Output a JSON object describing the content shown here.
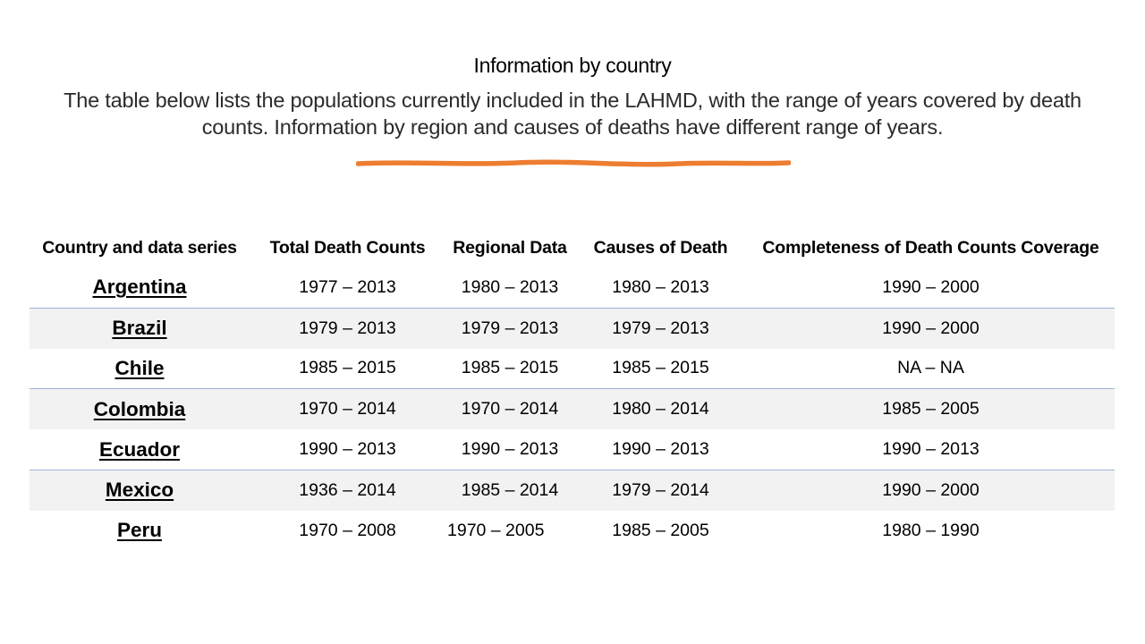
{
  "page": {
    "title": "Information by country",
    "subtitle": "The table below lists the populations currently included in the LAHMD, with the range of years covered by death counts. Information by region and causes of deaths have different range of years."
  },
  "colors": {
    "accent_stroke": "#ed7d31",
    "row_shade": "#f2f2f2",
    "row_rule": "#9bb3d6"
  },
  "table": {
    "headers": [
      "Country and data series",
      "Total Death Counts",
      "Regional Data",
      "Causes of Death",
      "Completeness of Death Counts Coverage"
    ],
    "rows": [
      {
        "country": "Argentina",
        "total": "1977 – 2013",
        "regional": "1980 – 2013",
        "causes": "1980 – 2013",
        "completeness": "1990 – 2000"
      },
      {
        "country": "Brazil",
        "total": "1979 – 2013",
        "regional": "1979 – 2013",
        "causes": "1979 – 2013",
        "completeness": "1990 – 2000"
      },
      {
        "country": "Chile",
        "total": "1985 – 2015",
        "regional": "1985 – 2015",
        "causes": "1985 – 2015",
        "completeness": "NA – NA"
      },
      {
        "country": "Colombia",
        "total": "1970 – 2014",
        "regional": "1970 – 2014",
        "causes": "1980 – 2014",
        "completeness": "1985 – 2005"
      },
      {
        "country": "Ecuador",
        "total": "1990 – 2013",
        "regional": "1990 – 2013",
        "causes": "1990 – 2013",
        "completeness": "1990 – 2013"
      },
      {
        "country": "Mexico",
        "total": "1936 – 2014",
        "regional": "1985 – 2014",
        "causes": "1979 – 2014",
        "completeness": "1990 – 2000"
      },
      {
        "country": "Peru",
        "total": "1970 – 2008",
        "regional": "1970 – 2005",
        "causes": "1985 – 2005",
        "completeness": "1980 – 1990"
      }
    ]
  }
}
